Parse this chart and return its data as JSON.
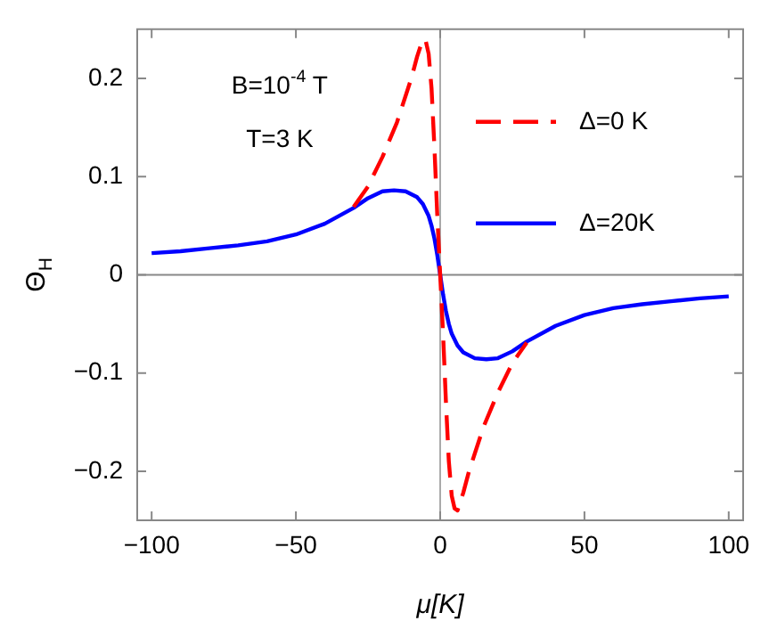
{
  "chart_data": {
    "type": "line",
    "xlabel": "μ[K]",
    "ylabel": "Θ$_{H}$",
    "annotations": [
      "B=10$^{-4}$ T",
      "T=3 K"
    ],
    "xlim": [
      -105,
      105
    ],
    "xticks": [
      {
        "value": -100,
        "label": "−100"
      },
      {
        "value": -50,
        "label": "−50"
      },
      0,
      50,
      100
    ],
    "ylim": [
      -0.25,
      0.25
    ],
    "yticks": [
      {
        "value": -0.2,
        "label": "−0.2"
      },
      {
        "value": -0.1,
        "label": "−0.1"
      },
      0,
      0.1,
      0.2
    ],
    "ref_lines": [
      {
        "axis": "x",
        "value": 0,
        "color": "#aaaaaa"
      },
      {
        "axis": "y",
        "value": 0,
        "color": "#888888"
      }
    ],
    "legend": "top right",
    "grid": false,
    "marker": "none",
    "series": [
      {
        "name": "Δ=0 K",
        "color": "#ff0000",
        "line_style": "dashed",
        "x": [
          -30,
          -25,
          -20,
          -15,
          -10,
          -8,
          -6,
          -5,
          -4,
          -3,
          -2,
          -1,
          0,
          1,
          2,
          3,
          4,
          5,
          6,
          8,
          10,
          15,
          20,
          25,
          30
        ],
        "values": [
          0.069,
          0.09,
          0.12,
          0.155,
          0.2,
          0.222,
          0.24,
          0.238,
          0.225,
          0.19,
          0.13,
          0.06,
          0,
          -0.06,
          -0.13,
          -0.19,
          -0.225,
          -0.238,
          -0.24,
          -0.222,
          -0.2,
          -0.155,
          -0.12,
          -0.09,
          -0.069
        ]
      },
      {
        "name": "Δ=20K",
        "color": "#0000ff",
        "line_style": "solid",
        "x": [
          -100,
          -90,
          -80,
          -70,
          -60,
          -50,
          -40,
          -30,
          -25,
          -20,
          -16,
          -12,
          -8,
          -6,
          -4,
          -3,
          -2,
          -1,
          0,
          1,
          2,
          3,
          4,
          6,
          8,
          12,
          16,
          20,
          25,
          30,
          40,
          50,
          60,
          70,
          80,
          90,
          100
        ],
        "values": [
          0.022,
          0.024,
          0.027,
          0.03,
          0.034,
          0.041,
          0.052,
          0.068,
          0.078,
          0.085,
          0.086,
          0.085,
          0.079,
          0.072,
          0.06,
          0.05,
          0.037,
          0.02,
          0,
          -0.02,
          -0.037,
          -0.05,
          -0.06,
          -0.072,
          -0.079,
          -0.085,
          -0.086,
          -0.085,
          -0.078,
          -0.068,
          -0.052,
          -0.041,
          -0.034,
          -0.03,
          -0.027,
          -0.024,
          -0.022
        ]
      }
    ]
  }
}
